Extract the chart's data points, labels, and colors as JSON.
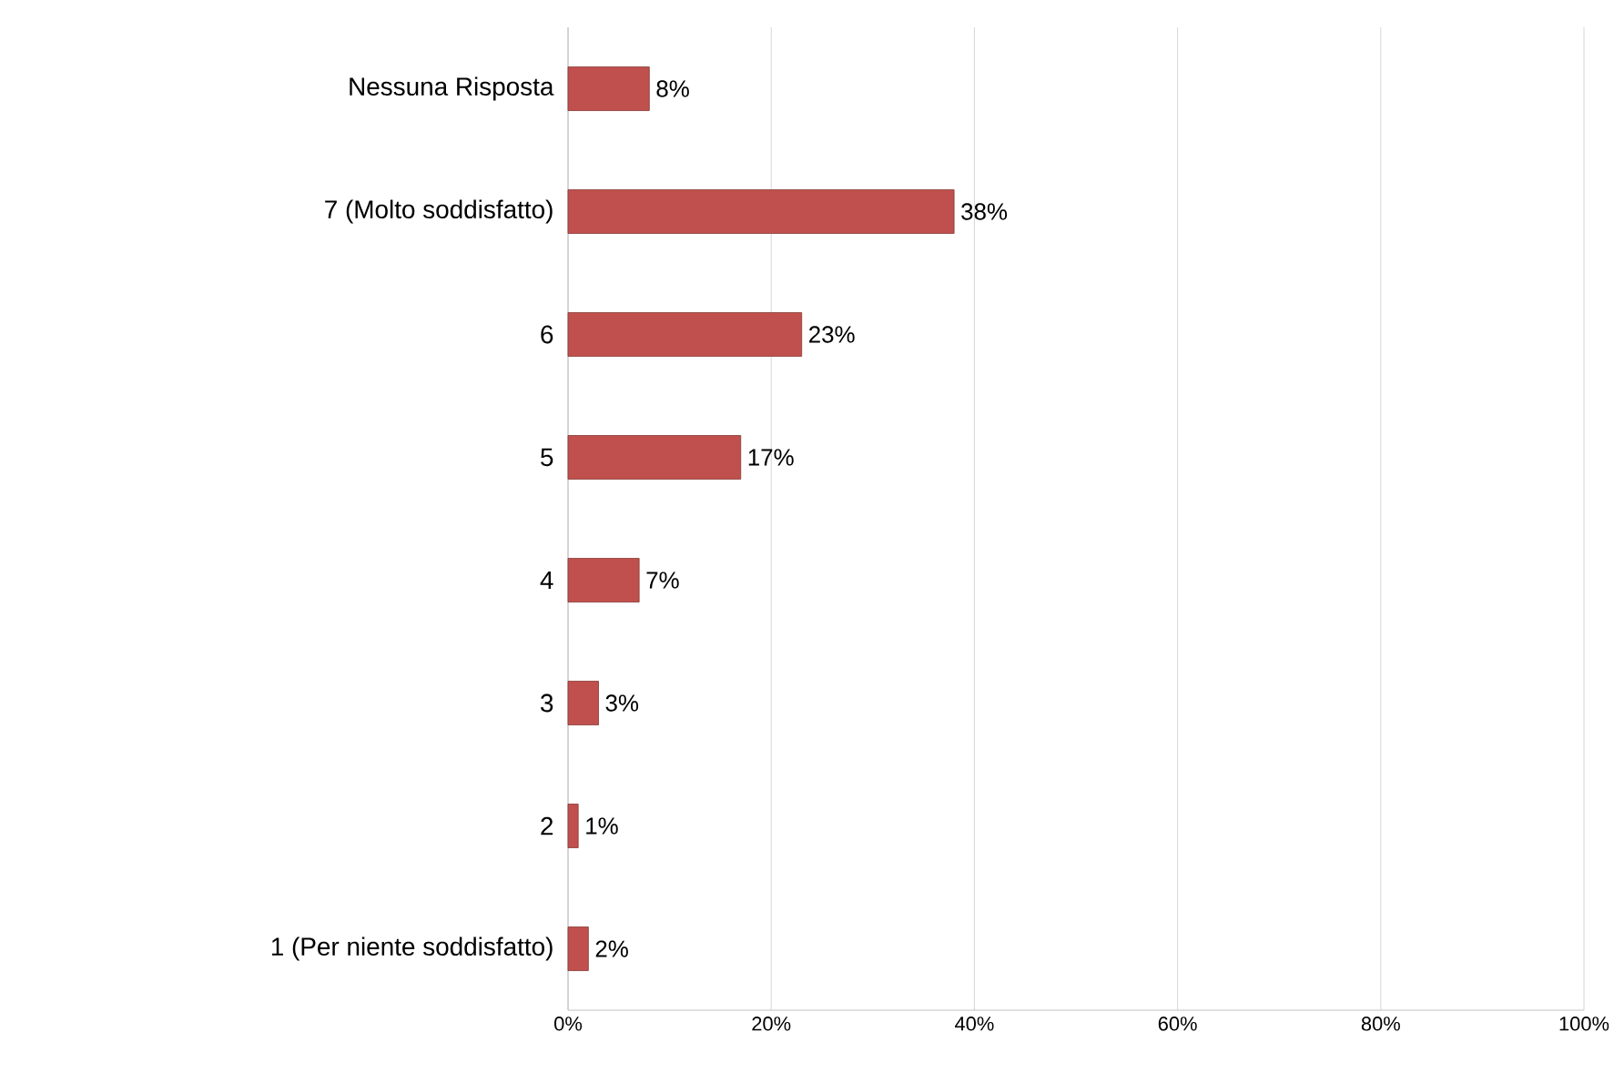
{
  "chart_data": {
    "type": "bar",
    "orientation": "horizontal",
    "categories": [
      "Nessuna Risposta",
      "7 (Molto soddisfatto)",
      "6",
      "5",
      "4",
      "3",
      "2",
      "1 (Per niente soddisfatto)"
    ],
    "values": [
      8,
      38,
      23,
      17,
      7,
      3,
      1,
      2
    ],
    "value_labels": [
      "8%",
      "38%",
      "23%",
      "17%",
      "7%",
      "3%",
      "1%",
      "2%"
    ],
    "color": "#c0504d",
    "xlim": [
      0,
      100
    ],
    "xticks": [
      {
        "value": 0,
        "label": "0%"
      },
      {
        "value": 20,
        "label": "20%"
      },
      {
        "value": 40,
        "label": "40%"
      },
      {
        "value": 60,
        "label": "60%"
      },
      {
        "value": 80,
        "label": "80%"
      },
      {
        "value": 100,
        "label": "100%"
      }
    ],
    "grid": "x"
  }
}
